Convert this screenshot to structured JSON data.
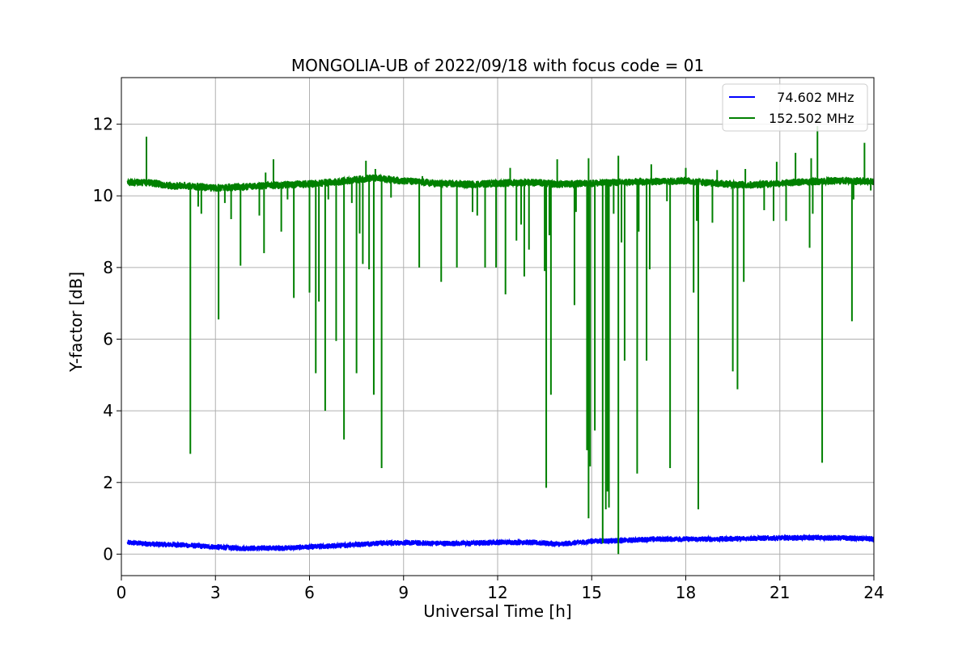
{
  "chart_data": {
    "type": "line",
    "title": "MONGOLIA-UB of 2022/09/18 with focus code = 01",
    "xlabel": "Universal Time [h]",
    "ylabel": "Y-factor [dB]",
    "xlim": [
      0,
      24
    ],
    "ylim": [
      -0.6,
      13.3
    ],
    "xticks": [
      0,
      3,
      6,
      9,
      12,
      15,
      18,
      21,
      24
    ],
    "yticks": [
      0,
      2,
      4,
      6,
      8,
      10,
      12
    ],
    "grid": true,
    "legend_position": "top-right",
    "x_range_data": [
      0.2,
      24
    ],
    "series": [
      {
        "name": "  74.602 MHz",
        "color": "#0000ff",
        "baseline": [
          [
            0.2,
            0.32
          ],
          [
            1.0,
            0.28
          ],
          [
            2.0,
            0.25
          ],
          [
            3.0,
            0.2
          ],
          [
            3.8,
            0.16
          ],
          [
            4.5,
            0.17
          ],
          [
            5.2,
            0.17
          ],
          [
            6.0,
            0.2
          ],
          [
            7.0,
            0.24
          ],
          [
            8.0,
            0.3
          ],
          [
            9.0,
            0.32
          ],
          [
            10.0,
            0.3
          ],
          [
            11.0,
            0.3
          ],
          [
            12.0,
            0.33
          ],
          [
            13.0,
            0.33
          ],
          [
            14.0,
            0.28
          ],
          [
            15.0,
            0.36
          ],
          [
            16.0,
            0.38
          ],
          [
            17.0,
            0.42
          ],
          [
            18.0,
            0.42
          ],
          [
            19.0,
            0.42
          ],
          [
            20.0,
            0.44
          ],
          [
            21.0,
            0.45
          ],
          [
            22.0,
            0.46
          ],
          [
            23.0,
            0.45
          ],
          [
            24.0,
            0.42
          ]
        ],
        "noise_amplitude": 0.06,
        "dips": []
      },
      {
        "name": "152.502 MHz",
        "color": "#008000",
        "baseline": [
          [
            0.2,
            10.38
          ],
          [
            1.0,
            10.36
          ],
          [
            1.5,
            10.28
          ],
          [
            2.0,
            10.28
          ],
          [
            3.0,
            10.22
          ],
          [
            4.0,
            10.26
          ],
          [
            5.0,
            10.3
          ],
          [
            6.0,
            10.33
          ],
          [
            7.0,
            10.4
          ],
          [
            8.0,
            10.5
          ],
          [
            9.0,
            10.42
          ],
          [
            10.0,
            10.35
          ],
          [
            11.0,
            10.32
          ],
          [
            12.0,
            10.35
          ],
          [
            13.0,
            10.38
          ],
          [
            14.0,
            10.32
          ],
          [
            15.0,
            10.35
          ],
          [
            16.0,
            10.38
          ],
          [
            17.0,
            10.4
          ],
          [
            18.0,
            10.42
          ],
          [
            19.0,
            10.35
          ],
          [
            20.0,
            10.3
          ],
          [
            21.0,
            10.35
          ],
          [
            22.0,
            10.4
          ],
          [
            23.0,
            10.42
          ],
          [
            24.0,
            10.4
          ]
        ],
        "noise_amplitude": 0.09,
        "spikes_up": [
          [
            0.8,
            11.65
          ],
          [
            4.6,
            10.65
          ],
          [
            4.85,
            11.02
          ],
          [
            7.8,
            10.98
          ],
          [
            8.1,
            10.75
          ],
          [
            9.6,
            10.55
          ],
          [
            12.4,
            10.78
          ],
          [
            13.9,
            11.02
          ],
          [
            14.9,
            11.05
          ],
          [
            15.85,
            11.12
          ],
          [
            16.9,
            10.88
          ],
          [
            18.0,
            10.78
          ],
          [
            19.0,
            10.72
          ],
          [
            19.9,
            10.75
          ],
          [
            20.9,
            10.95
          ],
          [
            21.5,
            11.2
          ],
          [
            22.0,
            11.05
          ],
          [
            22.2,
            11.95
          ],
          [
            23.7,
            11.48
          ]
        ],
        "dips": [
          [
            2.2,
            2.8
          ],
          [
            2.45,
            9.7
          ],
          [
            2.55,
            9.5
          ],
          [
            3.1,
            6.55
          ],
          [
            3.3,
            9.8
          ],
          [
            3.5,
            9.35
          ],
          [
            3.8,
            8.05
          ],
          [
            4.4,
            9.45
          ],
          [
            4.55,
            8.4
          ],
          [
            5.1,
            9.0
          ],
          [
            5.3,
            9.9
          ],
          [
            5.5,
            7.15
          ],
          [
            6.0,
            7.3
          ],
          [
            6.2,
            5.05
          ],
          [
            6.3,
            7.05
          ],
          [
            6.5,
            4.0
          ],
          [
            6.6,
            9.9
          ],
          [
            6.85,
            5.95
          ],
          [
            7.1,
            3.2
          ],
          [
            7.35,
            9.8
          ],
          [
            7.5,
            5.05
          ],
          [
            7.6,
            8.95
          ],
          [
            7.7,
            8.1
          ],
          [
            7.9,
            7.95
          ],
          [
            8.05,
            4.45
          ],
          [
            8.3,
            2.4
          ],
          [
            8.6,
            9.95
          ],
          [
            9.5,
            8.0
          ],
          [
            10.2,
            7.6
          ],
          [
            10.7,
            8.0
          ],
          [
            11.2,
            9.55
          ],
          [
            11.35,
            9.45
          ],
          [
            11.6,
            8.0
          ],
          [
            11.95,
            8.0
          ],
          [
            12.25,
            7.25
          ],
          [
            12.6,
            8.75
          ],
          [
            12.75,
            9.2
          ],
          [
            12.85,
            7.75
          ],
          [
            13.0,
            8.5
          ],
          [
            13.5,
            7.9
          ],
          [
            13.55,
            1.85
          ],
          [
            13.65,
            8.9
          ],
          [
            13.7,
            4.45
          ],
          [
            14.45,
            6.95
          ],
          [
            14.5,
            9.55
          ],
          [
            14.85,
            2.9
          ],
          [
            14.9,
            1.0
          ],
          [
            14.95,
            2.45
          ],
          [
            15.1,
            3.45
          ],
          [
            15.35,
            0.3
          ],
          [
            15.45,
            1.25
          ],
          [
            15.5,
            1.75
          ],
          [
            15.55,
            1.3
          ],
          [
            15.7,
            9.5
          ],
          [
            15.85,
            0.0
          ],
          [
            15.95,
            8.7
          ],
          [
            16.05,
            5.4
          ],
          [
            16.45,
            2.25
          ],
          [
            16.5,
            9.0
          ],
          [
            16.75,
            5.4
          ],
          [
            16.85,
            7.95
          ],
          [
            17.4,
            9.85
          ],
          [
            17.5,
            2.4
          ],
          [
            18.25,
            7.3
          ],
          [
            18.35,
            9.3
          ],
          [
            18.4,
            1.25
          ],
          [
            18.85,
            9.25
          ],
          [
            19.5,
            5.1
          ],
          [
            19.65,
            4.6
          ],
          [
            19.85,
            7.6
          ],
          [
            20.5,
            9.6
          ],
          [
            20.8,
            9.3
          ],
          [
            21.2,
            9.3
          ],
          [
            21.95,
            8.55
          ],
          [
            22.05,
            9.5
          ],
          [
            22.35,
            2.55
          ],
          [
            23.3,
            6.5
          ],
          [
            23.35,
            9.9
          ],
          [
            23.9,
            10.15
          ]
        ]
      }
    ]
  }
}
